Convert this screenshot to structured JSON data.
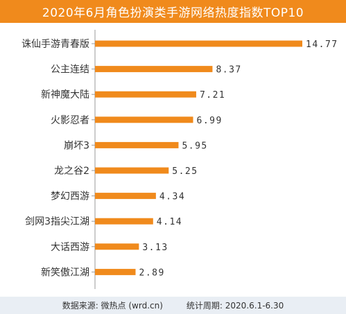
{
  "chart_data": {
    "type": "bar",
    "orientation": "horizontal",
    "title": "2020年6月角色扮演类手游网络热度指数TOP10",
    "categories": [
      "诛仙手游青春版",
      "公主连结",
      "新神魔大陆",
      "火影忍者",
      "崩坏3",
      "龙之谷2",
      "梦幻西游",
      "剑网3指尖江湖",
      "大话西游",
      "新笑傲江湖"
    ],
    "values": [
      14.77,
      8.37,
      7.21,
      6.99,
      5.95,
      5.25,
      4.34,
      4.14,
      3.13,
      2.89
    ],
    "value_labels": [
      "14.77",
      "8.37",
      "7.21",
      "6.99",
      "5.95",
      "5.25",
      "4.34",
      "4.14",
      "3.13",
      "2.89"
    ],
    "xlim": [
      0,
      14.77
    ],
    "grid": false,
    "legend": "none",
    "colors": {
      "bar": "#f08a1c",
      "title_bg": "#f08a1c",
      "footer_bg": "#e9eef4",
      "text": "#333333"
    }
  },
  "footer": {
    "source": "数据来源: 微热点 (wrd.cn)",
    "period": "统计周期: 2020.6.1-6.30"
  }
}
